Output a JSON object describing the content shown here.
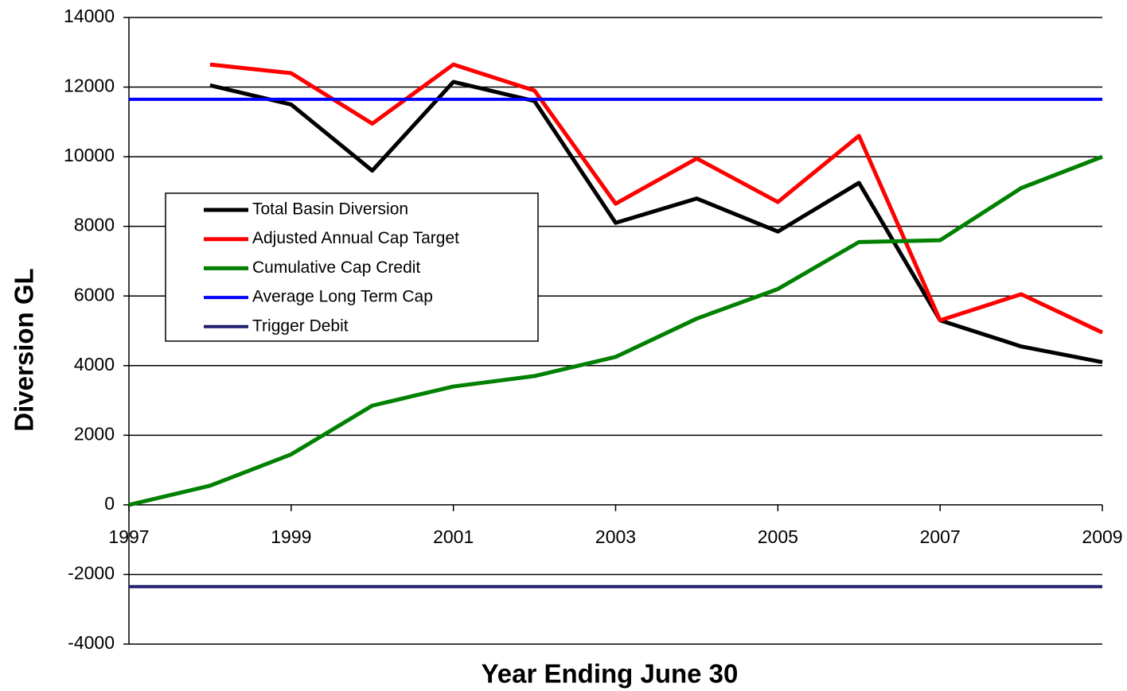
{
  "chart_data": {
    "type": "line",
    "x": [
      1997,
      1998,
      1999,
      2000,
      2001,
      2002,
      2003,
      2004,
      2005,
      2006,
      2007,
      2008,
      2009
    ],
    "series": [
      {
        "name": "Total Basin Diversion",
        "color": "#000000",
        "values": [
          null,
          12050,
          11500,
          9600,
          12150,
          11600,
          8100,
          8800,
          7850,
          9250,
          5300,
          4550,
          4100
        ]
      },
      {
        "name": "Adjusted Annual Cap Target",
        "color": "#ff0000",
        "values": [
          null,
          12650,
          12400,
          10950,
          12650,
          11900,
          8650,
          9950,
          8700,
          10600,
          5300,
          6050,
          4950
        ]
      },
      {
        "name": "Cumulative Cap Credit",
        "color": "#008000",
        "values": [
          0,
          550,
          1450,
          2850,
          3400,
          3700,
          4250,
          5350,
          6200,
          7550,
          7600,
          9100,
          10000
        ]
      },
      {
        "name": "Average Long Term Cap",
        "color": "#0000ff",
        "values": [
          11650,
          11650,
          11650,
          11650,
          11650,
          11650,
          11650,
          11650,
          11650,
          11650,
          11650,
          11650,
          11650
        ]
      },
      {
        "name": "Trigger Debit",
        "color": "#1f1f6e",
        "values": [
          -2350,
          -2350,
          -2350,
          -2350,
          -2350,
          -2350,
          -2350,
          -2350,
          -2350,
          -2350,
          -2350,
          -2350,
          -2350
        ]
      }
    ],
    "xlim": [
      1997,
      2009
    ],
    "xticks": [
      1997,
      1999,
      2001,
      2003,
      2005,
      2007,
      2009
    ],
    "ylim": [
      -4000,
      14000
    ],
    "yticks": [
      -4000,
      -2000,
      0,
      2000,
      4000,
      6000,
      8000,
      10000,
      12000,
      14000
    ],
    "grid": true,
    "legend": "left",
    "xlabel": "Year Ending June 30",
    "ylabel": "Diversion GL"
  }
}
